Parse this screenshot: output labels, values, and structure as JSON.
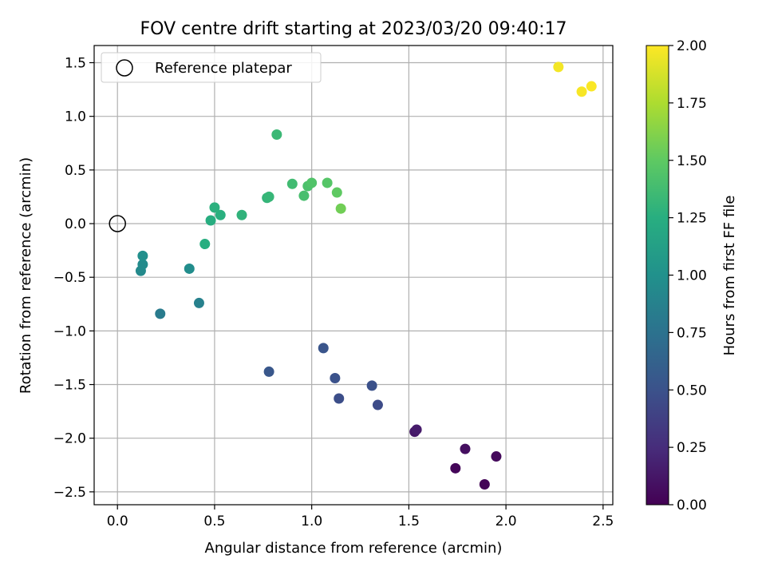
{
  "chart_data": {
    "type": "scatter",
    "title": "FOV centre drift starting at 2023/03/20 09:40:17",
    "xlabel": "Angular distance from reference (arcmin)",
    "ylabel": "Rotation from reference (arcmin)",
    "xlim": [
      -0.12,
      2.55
    ],
    "ylim": [
      -2.62,
      1.66
    ],
    "xticks": [
      0.0,
      0.5,
      1.0,
      1.5,
      2.0,
      2.5
    ],
    "xtick_labels": [
      "0.0",
      "0.5",
      "1.0",
      "1.5",
      "2.0",
      "2.5"
    ],
    "yticks": [
      1.5,
      1.0,
      0.5,
      0.0,
      -0.5,
      -1.0,
      -1.5,
      -2.0,
      -2.5
    ],
    "ytick_labels": [
      "1.5",
      "1.0",
      "0.5",
      "0.0",
      "−0.5",
      "−1.0",
      "−1.5",
      "−2.0",
      "−2.5"
    ],
    "grid": true,
    "legend": {
      "position": "top-left",
      "entries": [
        "Reference platepar"
      ]
    },
    "reference_point": {
      "x": 0.0,
      "y": 0.0,
      "label": "Reference platepar",
      "marker": "open-circle"
    },
    "colorbar": {
      "label": "Hours from first FF file",
      "colormap": "viridis",
      "range": [
        0.0,
        2.0
      ],
      "ticks": [
        0.0,
        0.25,
        0.5,
        0.75,
        1.0,
        1.25,
        1.5,
        1.75,
        2.0
      ],
      "tick_labels": [
        "0.00",
        "0.25",
        "0.50",
        "0.75",
        "1.00",
        "1.25",
        "1.50",
        "1.75",
        "2.00"
      ]
    },
    "points": [
      {
        "x": 1.89,
        "y": -2.43,
        "c": 0.02
      },
      {
        "x": 1.74,
        "y": -2.28,
        "c": 0.03
      },
      {
        "x": 1.95,
        "y": -2.17,
        "c": 0.05
      },
      {
        "x": 1.79,
        "y": -2.1,
        "c": 0.08
      },
      {
        "x": 1.53,
        "y": -1.94,
        "c": 0.12
      },
      {
        "x": 1.54,
        "y": -1.92,
        "c": 0.15
      },
      {
        "x": 1.34,
        "y": -1.69,
        "c": 0.45
      },
      {
        "x": 1.14,
        "y": -1.63,
        "c": 0.47
      },
      {
        "x": 1.31,
        "y": -1.51,
        "c": 0.49
      },
      {
        "x": 1.12,
        "y": -1.44,
        "c": 0.5
      },
      {
        "x": 1.06,
        "y": -1.16,
        "c": 0.52
      },
      {
        "x": 0.78,
        "y": -1.38,
        "c": 0.54
      },
      {
        "x": 0.22,
        "y": -0.84,
        "c": 0.82
      },
      {
        "x": 0.42,
        "y": -0.74,
        "c": 0.87
      },
      {
        "x": 0.12,
        "y": -0.44,
        "c": 0.94
      },
      {
        "x": 0.13,
        "y": -0.38,
        "c": 0.95
      },
      {
        "x": 0.37,
        "y": -0.42,
        "c": 0.97
      },
      {
        "x": 0.13,
        "y": -0.3,
        "c": 0.98
      },
      {
        "x": 0.45,
        "y": -0.19,
        "c": 1.25
      },
      {
        "x": 0.48,
        "y": 0.03,
        "c": 1.24
      },
      {
        "x": 0.53,
        "y": 0.08,
        "c": 1.26
      },
      {
        "x": 0.5,
        "y": 0.15,
        "c": 1.27
      },
      {
        "x": 0.64,
        "y": 0.08,
        "c": 1.29
      },
      {
        "x": 0.77,
        "y": 0.24,
        "c": 1.31
      },
      {
        "x": 0.78,
        "y": 0.25,
        "c": 1.32
      },
      {
        "x": 0.82,
        "y": 0.83,
        "c": 1.34
      },
      {
        "x": 0.9,
        "y": 0.37,
        "c": 1.37
      },
      {
        "x": 0.96,
        "y": 0.26,
        "c": 1.4
      },
      {
        "x": 0.98,
        "y": 0.35,
        "c": 1.42
      },
      {
        "x": 1.0,
        "y": 0.38,
        "c": 1.44
      },
      {
        "x": 1.08,
        "y": 0.38,
        "c": 1.46
      },
      {
        "x": 1.13,
        "y": 0.29,
        "c": 1.5
      },
      {
        "x": 1.15,
        "y": 0.14,
        "c": 1.56
      },
      {
        "x": 2.27,
        "y": 1.46,
        "c": 1.97
      },
      {
        "x": 2.39,
        "y": 1.23,
        "c": 1.98
      },
      {
        "x": 2.44,
        "y": 1.28,
        "c": 1.99
      }
    ]
  }
}
